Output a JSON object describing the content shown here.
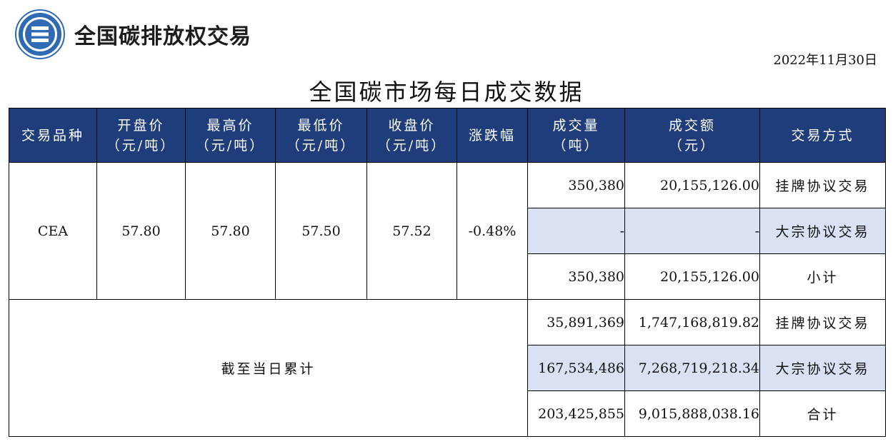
{
  "header": {
    "org_name": "全国碳排放权交易",
    "date": "2022年11月30日",
    "title": "全国碳市场每日成交数据"
  },
  "colors": {
    "header_bg": "#1f3d7a",
    "row_highlight": "#d9e1f2",
    "logo_blue": "#2f6bb5"
  },
  "table": {
    "headers": [
      {
        "line1": "交易品种",
        "line2": ""
      },
      {
        "line1": "开盘价",
        "line2": "（元/吨）"
      },
      {
        "line1": "最高价",
        "line2": "（元/吨）"
      },
      {
        "line1": "最低价",
        "line2": "（元/吨）"
      },
      {
        "line1": "收盘价",
        "line2": "（元/吨）"
      },
      {
        "line1": "涨跌幅",
        "line2": ""
      },
      {
        "line1": "成交量",
        "line2": "（吨）"
      },
      {
        "line1": "成交额",
        "line2": "（元）"
      },
      {
        "line1": "交易方式",
        "line2": ""
      }
    ],
    "daily": {
      "product": "CEA",
      "open": "57.80",
      "high": "57.80",
      "low": "57.50",
      "close": "57.52",
      "change": "-0.48%",
      "rows": [
        {
          "volume": "350,380",
          "amount": "20,155,126.00",
          "method": "挂牌协议交易"
        },
        {
          "volume": "-",
          "amount": "-",
          "method": "大宗协议交易"
        },
        {
          "volume": "350,380",
          "amount": "20,155,126.00",
          "method": "小计"
        }
      ]
    },
    "cumulative": {
      "label": "截至当日累计",
      "rows": [
        {
          "volume": "35,891,369",
          "amount": "1,747,168,819.82",
          "method": "挂牌协议交易"
        },
        {
          "volume": "167,534,486",
          "amount": "7,268,719,218.34",
          "method": "大宗协议交易"
        },
        {
          "volume": "203,425,855",
          "amount": "9,015,888,038.16",
          "method": "合计"
        }
      ]
    }
  }
}
